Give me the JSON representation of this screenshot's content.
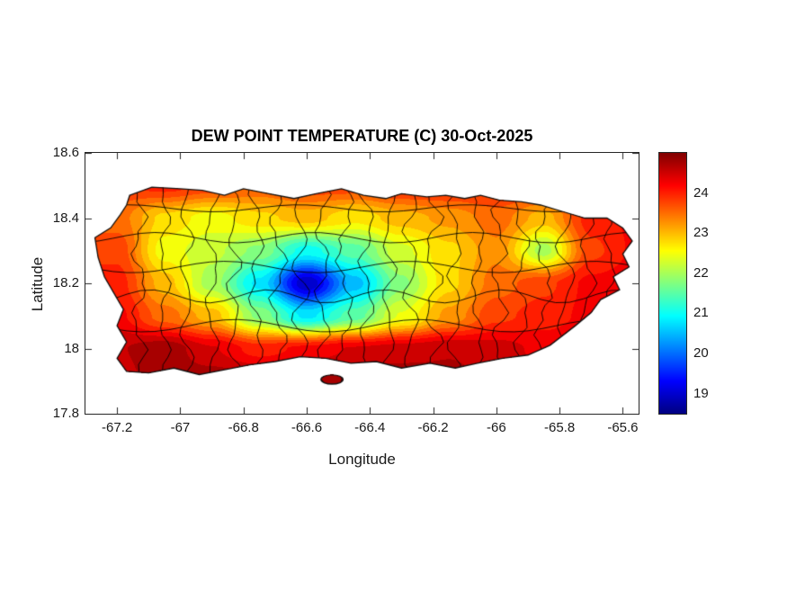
{
  "figure": {
    "title": "DEW POINT TEMPERATURE (C) 30-Oct-2025",
    "xlabel": "Longitude",
    "ylabel": "Latitude",
    "background": "#ffffff",
    "axis_color": "#262626"
  },
  "chart_data": {
    "type": "heatmap",
    "title": "DEW POINT TEMPERATURE (C) 30-Oct-2025",
    "xlabel": "Longitude",
    "ylabel": "Latitude",
    "region": "puerto-rico-municipal-map",
    "xlim": [
      -67.3,
      -65.55
    ],
    "ylim": [
      17.8,
      18.6
    ],
    "grid_lines": false,
    "xticks": [
      {
        "v": -67.2,
        "label": "-67.2"
      },
      {
        "v": -67.0,
        "label": "-67"
      },
      {
        "v": -66.8,
        "label": "-66.8"
      },
      {
        "v": -66.6,
        "label": "-66.6"
      },
      {
        "v": -66.4,
        "label": "-66.4"
      },
      {
        "v": -66.2,
        "label": "-66.2"
      },
      {
        "v": -66.0,
        "label": "-66"
      },
      {
        "v": -65.8,
        "label": "-65.8"
      },
      {
        "v": -65.6,
        "label": "-65.6"
      }
    ],
    "yticks": [
      {
        "v": 18.6,
        "label": "18.6"
      },
      {
        "v": 18.4,
        "label": "18.4"
      },
      {
        "v": 18.2,
        "label": "18.2"
      },
      {
        "v": 18.0,
        "label": "18"
      },
      {
        "v": 17.8,
        "label": "17.8"
      }
    ],
    "colorbar": {
      "colormap": "jet",
      "range": [
        18.5,
        25.0
      ],
      "position": "right",
      "ticks": [
        {
          "v": 24,
          "label": "24"
        },
        {
          "v": 23,
          "label": "23"
        },
        {
          "v": 22,
          "label": "22"
        },
        {
          "v": 21,
          "label": "21"
        },
        {
          "v": 20,
          "label": "20"
        },
        {
          "v": 19,
          "label": "19"
        }
      ],
      "stops": [
        {
          "t": 0.0,
          "color": "#000080"
        },
        {
          "t": 0.125,
          "color": "#0000ff"
        },
        {
          "t": 0.25,
          "color": "#0080ff"
        },
        {
          "t": 0.375,
          "color": "#00ffff"
        },
        {
          "t": 0.5,
          "color": "#80ff80"
        },
        {
          "t": 0.625,
          "color": "#ffff00"
        },
        {
          "t": 0.75,
          "color": "#ff8000"
        },
        {
          "t": 0.875,
          "color": "#ff0000"
        },
        {
          "t": 1.0,
          "color": "#800000"
        }
      ]
    },
    "contour_step_c": 0.25,
    "grid": {
      "lons": [
        -67.2,
        -67.05,
        -66.9,
        -66.75,
        -66.6,
        -66.45,
        -66.3,
        -66.15,
        -66.0,
        -65.85,
        -65.7,
        -65.55
      ],
      "lats": [
        17.9,
        18.0,
        18.1,
        18.2,
        18.3,
        18.4,
        18.5
      ],
      "dewpoint_c": [
        [
          24.5,
          24.8,
          24.8,
          24.8,
          24.8,
          24.8,
          24.8,
          24.7,
          24.6,
          24.5,
          24.5,
          24.5
        ],
        [
          24.6,
          24.8,
          24.4,
          24.0,
          24.2,
          24.4,
          24.5,
          24.6,
          24.5,
          24.3,
          24.4,
          24.5
        ],
        [
          24.2,
          23.5,
          23.0,
          21.8,
          20.8,
          21.5,
          22.4,
          23.2,
          23.8,
          24.0,
          24.2,
          24.4
        ],
        [
          24.0,
          23.0,
          22.0,
          20.8,
          18.9,
          20.5,
          21.8,
          22.8,
          23.5,
          23.8,
          24.2,
          24.3
        ],
        [
          23.8,
          22.5,
          22.2,
          21.8,
          21.0,
          21.5,
          22.3,
          22.8,
          23.3,
          22.0,
          23.8,
          24.2
        ],
        [
          23.5,
          22.8,
          22.5,
          22.8,
          23.0,
          22.7,
          23.0,
          23.2,
          23.5,
          23.0,
          24.0,
          24.2
        ],
        [
          23.8,
          24.0,
          23.8,
          23.6,
          23.8,
          23.8,
          24.0,
          24.0,
          24.0,
          24.0,
          24.2,
          24.3
        ]
      ]
    },
    "island_outline": [
      [
        -67.16,
        18.47
      ],
      [
        -67.09,
        18.495
      ],
      [
        -67.0,
        18.49
      ],
      [
        -66.93,
        18.485
      ],
      [
        -66.86,
        18.47
      ],
      [
        -66.8,
        18.49
      ],
      [
        -66.72,
        18.475
      ],
      [
        -66.64,
        18.46
      ],
      [
        -66.57,
        18.475
      ],
      [
        -66.49,
        18.49
      ],
      [
        -66.42,
        18.47
      ],
      [
        -66.35,
        18.46
      ],
      [
        -66.3,
        18.475
      ],
      [
        -66.22,
        18.465
      ],
      [
        -66.16,
        18.47
      ],
      [
        -66.1,
        18.46
      ],
      [
        -66.05,
        18.47
      ],
      [
        -65.99,
        18.455
      ],
      [
        -65.92,
        18.45
      ],
      [
        -65.86,
        18.44
      ],
      [
        -65.79,
        18.42
      ],
      [
        -65.72,
        18.4
      ],
      [
        -65.65,
        18.4
      ],
      [
        -65.6,
        18.37
      ],
      [
        -65.57,
        18.33
      ],
      [
        -65.6,
        18.29
      ],
      [
        -65.58,
        18.25
      ],
      [
        -65.63,
        18.22
      ],
      [
        -65.61,
        18.18
      ],
      [
        -65.67,
        18.15
      ],
      [
        -65.7,
        18.11
      ],
      [
        -65.75,
        18.07
      ],
      [
        -65.83,
        18.01
      ],
      [
        -65.9,
        17.98
      ],
      [
        -65.98,
        17.97
      ],
      [
        -66.06,
        17.955
      ],
      [
        -66.13,
        17.94
      ],
      [
        -66.21,
        17.955
      ],
      [
        -66.3,
        17.94
      ],
      [
        -66.38,
        17.96
      ],
      [
        -66.46,
        17.955
      ],
      [
        -66.54,
        17.97
      ],
      [
        -66.62,
        17.975
      ],
      [
        -66.7,
        17.96
      ],
      [
        -66.78,
        17.95
      ],
      [
        -66.86,
        17.935
      ],
      [
        -66.94,
        17.92
      ],
      [
        -67.02,
        17.94
      ],
      [
        -67.1,
        17.925
      ],
      [
        -67.17,
        17.93
      ],
      [
        -67.2,
        17.97
      ],
      [
        -67.17,
        18.02
      ],
      [
        -67.2,
        18.07
      ],
      [
        -67.18,
        18.12
      ],
      [
        -67.21,
        18.17
      ],
      [
        -67.24,
        18.22
      ],
      [
        -67.26,
        18.28
      ],
      [
        -67.27,
        18.34
      ],
      [
        -67.22,
        18.37
      ],
      [
        -67.19,
        18.41
      ],
      [
        -67.17,
        18.44
      ]
    ],
    "islet": {
      "lon": -66.52,
      "lat": 17.905,
      "rlon": 0.035,
      "rlat": 0.014
    },
    "boundaries": {
      "seed": 11,
      "color": "#000000",
      "divider_lons": [
        -67.13,
        -67.05,
        -66.98,
        -66.9,
        -66.83,
        -66.76,
        -66.69,
        -66.62,
        -66.55,
        -66.48,
        -66.41,
        -66.34,
        -66.27,
        -66.2,
        -66.13,
        -66.06,
        -65.99,
        -65.92,
        -65.85,
        -65.78,
        -65.71,
        -65.64
      ],
      "divider_lats": [
        18.07,
        18.16,
        18.25,
        18.34,
        18.43
      ]
    }
  }
}
